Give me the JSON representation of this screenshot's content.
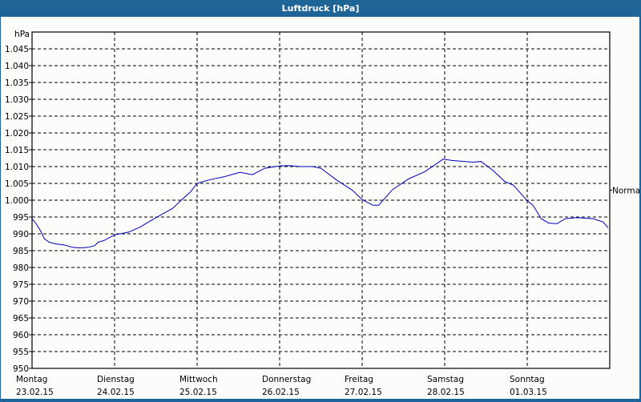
{
  "window": {
    "title": "Luftdruck [hPa]"
  },
  "colors": {
    "titlebar": "#1f6496",
    "line": "#0000c0",
    "background": "#fcfdfb",
    "grid": "#000000"
  },
  "chart_data": {
    "type": "line",
    "title": "Luftdruck [hPa]",
    "ylabel": "hPa",
    "xlabel": "",
    "ylim": [
      950,
      1050
    ],
    "yticks": [
      "950",
      "955",
      "960",
      "965",
      "970",
      "975",
      "980",
      "985",
      "990",
      "995",
      "1.000",
      "1.005",
      "1.010",
      "1.015",
      "1.020",
      "1.025",
      "1.030",
      "1.035",
      "1.040",
      "1.045"
    ],
    "x_categories": [
      {
        "day": "Montag",
        "date": "23.02.15"
      },
      {
        "day": "Dienstag",
        "date": "24.02.15"
      },
      {
        "day": "Mittwoch",
        "date": "25.02.15"
      },
      {
        "day": "Donnerstag",
        "date": "26.02.15"
      },
      {
        "day": "Freitag",
        "date": "27.02.15"
      },
      {
        "day": "Samstag",
        "date": "28.02.15"
      },
      {
        "day": "Sonntag",
        "date": "01.03.15"
      }
    ],
    "right_marker": {
      "label": "Normal",
      "value": 1003
    },
    "grid": true,
    "series": [
      {
        "name": "Luftdruck",
        "x_days": [
          0.0,
          0.05,
          0.1,
          0.15,
          0.21,
          0.29,
          0.39,
          0.49,
          0.58,
          0.68,
          0.76,
          0.8,
          0.87,
          1.0,
          1.17,
          1.31,
          1.41,
          1.55,
          1.7,
          1.83,
          1.92,
          2.0,
          2.14,
          2.33,
          2.52,
          2.67,
          2.82,
          3.0,
          3.11,
          3.25,
          3.4,
          3.5,
          3.69,
          3.88,
          4.0,
          4.13,
          4.2,
          4.37,
          4.56,
          4.76,
          4.88,
          4.98,
          5.09,
          5.34,
          5.44,
          5.58,
          5.73,
          5.83,
          5.94,
          6.0,
          6.07,
          6.17,
          6.26,
          6.36,
          6.46,
          6.6,
          6.8,
          6.92,
          6.98
        ],
        "values": [
          994.5,
          993,
          991,
          988.5,
          987.5,
          987,
          986.7,
          986,
          985.8,
          986,
          986.5,
          987.5,
          988,
          989.7,
          990.5,
          992,
          993.5,
          995.5,
          997.5,
          1000.5,
          1002.5,
          1005,
          1006,
          1007,
          1008.3,
          1007.6,
          1009.5,
          1010.2,
          1010.3,
          1010,
          1010,
          1009.5,
          1006,
          1003,
          1000.2,
          998.5,
          998.5,
          1003.2,
          1006.3,
          1008.5,
          1010.5,
          1012.2,
          1011.8,
          1011.3,
          1011.5,
          1009,
          1005.5,
          1004.5,
          1001.5,
          999.8,
          998.5,
          994.5,
          993.2,
          993,
          994.5,
          994.8,
          994.5,
          993.5,
          991.8
        ]
      }
    ]
  }
}
